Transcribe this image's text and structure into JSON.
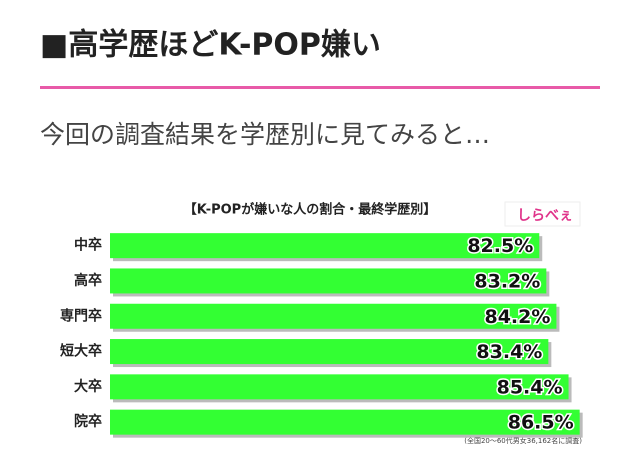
{
  "header": {
    "title": "■高学歴ほどK-POP嫌い",
    "subtitle": "今回の調査結果を学歴別に見てみると…"
  },
  "chart_data": {
    "type": "bar",
    "orientation": "horizontal",
    "title": "【K-POPが嫌いな人の割合・最終学歴別】",
    "logo": "しらべぇ",
    "note": "(全国20～60代男女36,162名に調査)",
    "categories": [
      "中卒",
      "高卒",
      "専門卒",
      "短大卒",
      "大卒",
      "院卒"
    ],
    "values": [
      82.5,
      83.2,
      84.2,
      83.4,
      85.4,
      86.5
    ],
    "value_labels": [
      "82.5%",
      "83.2%",
      "84.2%",
      "83.4%",
      "85.4%",
      "86.5%"
    ],
    "color": "#33ff33",
    "xlim": [
      40,
      90
    ]
  }
}
